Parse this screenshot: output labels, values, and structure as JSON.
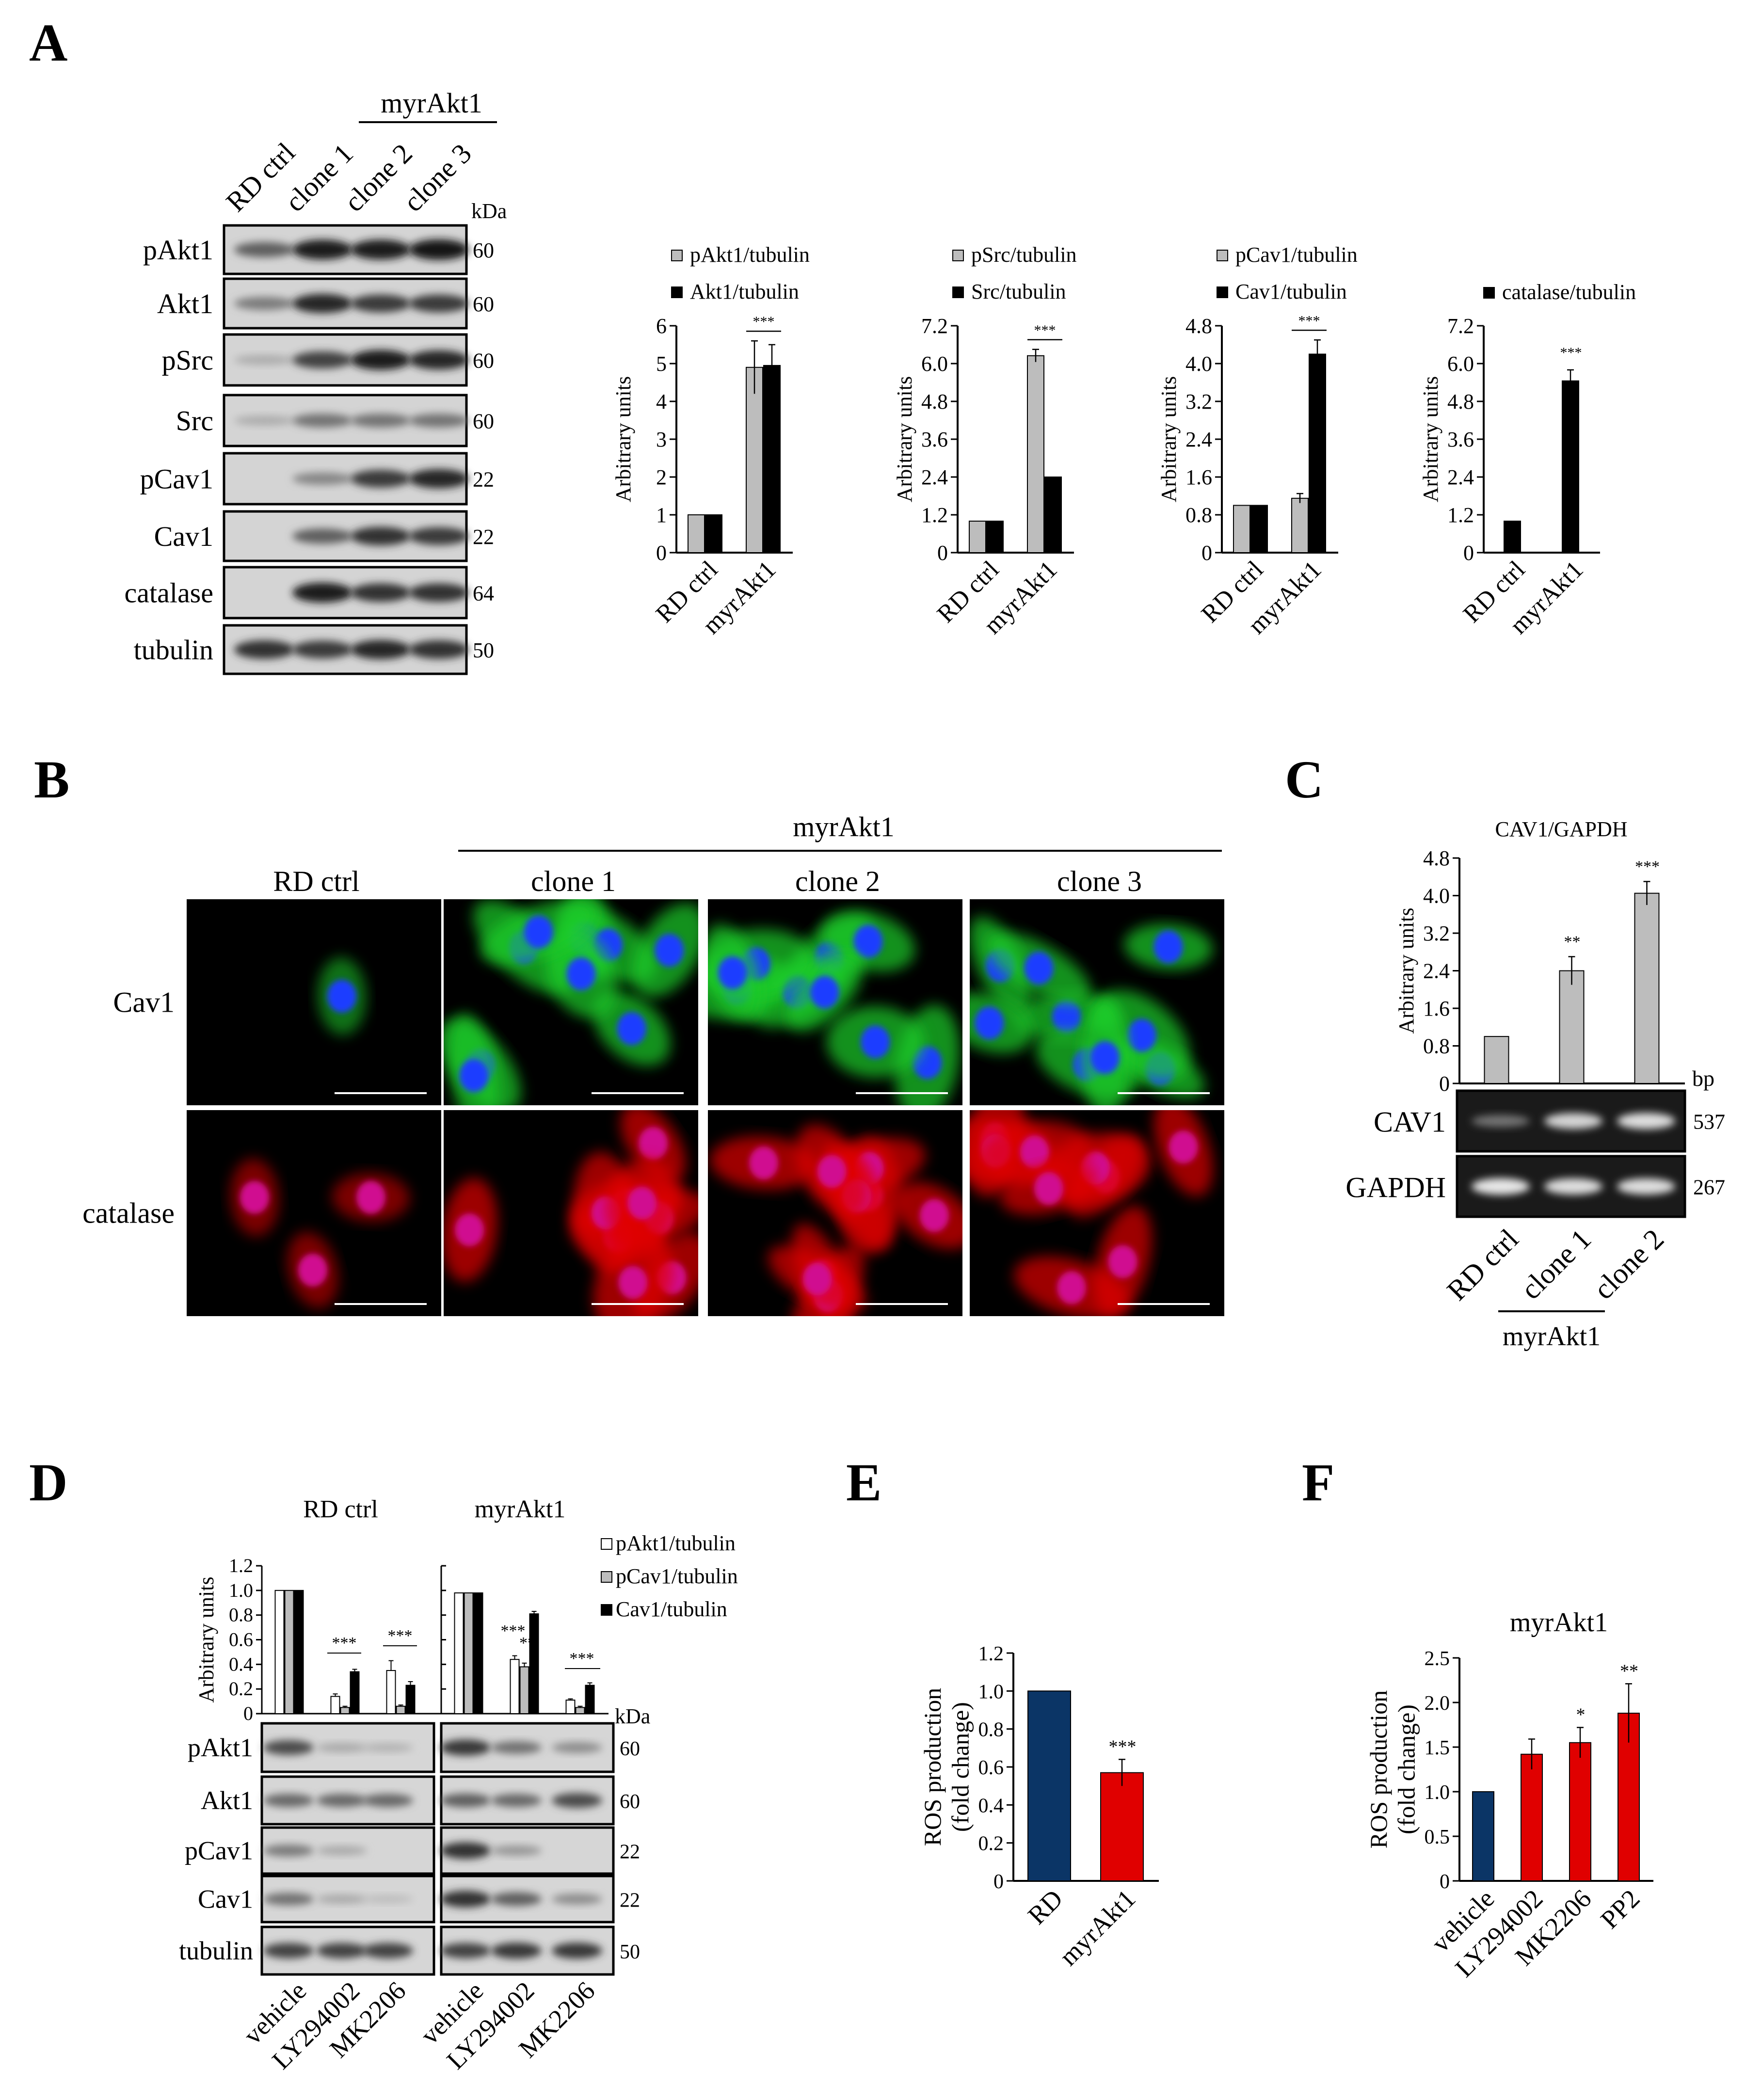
{
  "panels": {
    "A": "A",
    "B": "B",
    "C": "C",
    "D": "D",
    "E": "E",
    "F": "F"
  },
  "panelA": {
    "group_label": "myrAkt1",
    "lanes": [
      "RD ctrl",
      "clone 1",
      "clone 2",
      "clone 3"
    ],
    "kda_label": "kDa",
    "blots": [
      {
        "name": "pAkt1",
        "kda": "60",
        "bands": [
          0.55,
          0.9,
          0.9,
          0.95
        ]
      },
      {
        "name": "Akt1",
        "kda": "60",
        "bands": [
          0.4,
          0.85,
          0.75,
          0.75
        ]
      },
      {
        "name": "pSrc",
        "kda": "60",
        "bands": [
          0.15,
          0.7,
          0.9,
          0.85
        ]
      },
      {
        "name": "Src",
        "kda": "60",
        "bands": [
          0.15,
          0.45,
          0.45,
          0.45
        ]
      },
      {
        "name": "pCav1",
        "kda": "22",
        "bands": [
          0.0,
          0.35,
          0.75,
          0.85
        ]
      },
      {
        "name": "Cav1",
        "kda": "22",
        "bands": [
          0.0,
          0.55,
          0.8,
          0.75
        ]
      },
      {
        "name": "catalase",
        "kda": "64",
        "bands": [
          0.0,
          0.9,
          0.8,
          0.8
        ]
      },
      {
        "name": "tubulin",
        "kda": "50",
        "bands": [
          0.8,
          0.75,
          0.85,
          0.8
        ]
      }
    ]
  },
  "panelB": {
    "group_label": "myrAkt1",
    "columns": [
      "RD ctrl",
      "clone 1",
      "clone 2",
      "clone 3"
    ],
    "rows": [
      "Cav1",
      "catalase"
    ]
  },
  "panelC": {
    "group_label": "myrAkt1",
    "bp_label": "bp",
    "gel_rows": [
      {
        "name": "CAV1",
        "bp": "537",
        "bands": [
          0.3,
          0.8,
          0.85
        ]
      },
      {
        "name": "GAPDH",
        "bp": "267",
        "bands": [
          0.9,
          0.85,
          0.85
        ]
      }
    ]
  },
  "panelD": {
    "group_labels": [
      "RD ctrl",
      "myrAkt1"
    ],
    "kda_label": "kDa",
    "lanes": [
      "vehicle",
      "LY294002",
      "MK2206",
      "vehicle",
      "LY294002",
      "MK2206"
    ],
    "blots": [
      {
        "name": "pAkt1",
        "kda": "60",
        "bands": [
          0.7,
          0.2,
          0.15,
          0.8,
          0.5,
          0.35
        ]
      },
      {
        "name": "Akt1",
        "kda": "60",
        "bands": [
          0.55,
          0.55,
          0.55,
          0.6,
          0.55,
          0.7
        ]
      },
      {
        "name": "pCav1",
        "kda": "22",
        "bands": [
          0.45,
          0.2,
          0.0,
          0.85,
          0.3,
          0.0
        ]
      },
      {
        "name": "Cav1",
        "kda": "22",
        "bands": [
          0.5,
          0.2,
          0.1,
          0.85,
          0.6,
          0.35
        ]
      },
      {
        "name": "tubulin",
        "kda": "50",
        "bands": [
          0.75,
          0.75,
          0.75,
          0.75,
          0.8,
          0.8
        ]
      }
    ]
  },
  "colors": {
    "gray": "#bdbdbd",
    "black": "#000000",
    "white": "#ffffff",
    "navy": "#0b3566",
    "red": "#e00000",
    "green": "#1fcf2a",
    "blue": "#1a3cff",
    "magenta": "#d01090"
  },
  "chart_data": [
    {
      "id": "A1",
      "type": "bar",
      "categories": [
        "RD ctrl",
        "myrAkt1"
      ],
      "ylabel": "Arbitrary units",
      "ylim": [
        0,
        6
      ],
      "yticks": [
        "0",
        "1",
        "2",
        "3",
        "4",
        "5",
        "6"
      ],
      "series": [
        {
          "name": "pAkt1/tubulin",
          "values": [
            1.0,
            4.9
          ],
          "errors": [
            0,
            0.7
          ],
          "color": "#bdbdbd"
        },
        {
          "name": "Akt1/tubulin",
          "values": [
            1.0,
            4.95
          ],
          "errors": [
            0,
            0.55
          ],
          "color": "#000000"
        }
      ],
      "annotations": [
        {
          "text": "***",
          "category": 1
        }
      ]
    },
    {
      "id": "A2",
      "type": "bar",
      "categories": [
        "RD ctrl",
        "myrAkt1"
      ],
      "ylabel": "Arbitrary units",
      "ylim": [
        0,
        7.2
      ],
      "yticks": [
        "0",
        "1.2",
        "2.4",
        "3.6",
        "4.8",
        "6.0",
        "7.2"
      ],
      "series": [
        {
          "name": "pSrc/tubulin",
          "values": [
            1.0,
            6.25
          ],
          "errors": [
            0,
            0.2
          ],
          "color": "#bdbdbd"
        },
        {
          "name": "Src/tubulin",
          "values": [
            1.0,
            2.4
          ],
          "errors": [
            0,
            0
          ],
          "color": "#000000"
        }
      ],
      "annotations": [
        {
          "text": "***",
          "category": 1
        }
      ]
    },
    {
      "id": "A3",
      "type": "bar",
      "categories": [
        "RD ctrl",
        "myrAkt1"
      ],
      "ylabel": "Arbitrary units",
      "ylim": [
        0,
        4.8
      ],
      "yticks": [
        "0",
        "0.8",
        "1.6",
        "2.4",
        "3.2",
        "4.0",
        "4.8"
      ],
      "series": [
        {
          "name": "pCav1/tubulin",
          "values": [
            1.0,
            1.15
          ],
          "errors": [
            0,
            0.1
          ],
          "color": "#bdbdbd"
        },
        {
          "name": "Cav1/tubulin",
          "values": [
            1.0,
            4.2
          ],
          "errors": [
            0,
            0.3
          ],
          "color": "#000000"
        }
      ],
      "annotations": [
        {
          "text": "***",
          "category": 1
        }
      ]
    },
    {
      "id": "A4",
      "type": "bar",
      "categories": [
        "RD ctrl",
        "myrAkt1"
      ],
      "ylabel": "Arbitrary units",
      "ylim": [
        0,
        7.2
      ],
      "yticks": [
        "0",
        "1.2",
        "2.4",
        "3.6",
        "4.8",
        "6.0",
        "7.2"
      ],
      "series": [
        {
          "name": "catalase/tubulin",
          "values": [
            1.0,
            5.45
          ],
          "errors": [
            0,
            0.35
          ],
          "color": "#000000"
        }
      ],
      "annotations": [
        {
          "text": "***",
          "category": 1
        }
      ]
    },
    {
      "id": "C",
      "type": "bar",
      "title": "CAV1/GAPDH",
      "categories": [
        "RD ctrl",
        "clone 1",
        "clone 2"
      ],
      "ylabel": "Arbitrary units",
      "ylim": [
        0,
        4.8
      ],
      "yticks": [
        "0",
        "0.8",
        "1.6",
        "2.4",
        "3.2",
        "4.0",
        "4.8"
      ],
      "series": [
        {
          "values": [
            1.0,
            2.4,
            4.05
          ],
          "errors": [
            0,
            0.3,
            0.25
          ],
          "color": "#bdbdbd"
        }
      ],
      "annotations": [
        {
          "text": "**",
          "category": 1
        },
        {
          "text": "***",
          "category": 2
        }
      ]
    },
    {
      "id": "D",
      "type": "bar",
      "ylabel": "Arbitrary units",
      "ylim": [
        0,
        1.2
      ],
      "yticks": [
        "0",
        "0.2",
        "0.4",
        "0.6",
        "0.8",
        "1.0",
        "1.2"
      ],
      "groups": [
        {
          "title": "RD ctrl",
          "categories": [
            "vehicle",
            "LY294002",
            "MK2206"
          ]
        },
        {
          "title": "myrAkt1",
          "categories": [
            "vehicle",
            "LY294002",
            "MK2206"
          ]
        }
      ],
      "series": [
        {
          "name": "pAkt1/tubulin",
          "color": "#ffffff",
          "values": [
            1.0,
            0.14,
            0.35,
            0.98,
            0.44,
            0.11
          ],
          "errors": [
            0,
            0.02,
            0.08,
            0,
            0.03,
            0.01
          ]
        },
        {
          "name": "pCav1/tubulin",
          "color": "#bdbdbd",
          "values": [
            1.0,
            0.05,
            0.06,
            0.98,
            0.38,
            0.05
          ],
          "errors": [
            0,
            0.01,
            0.01,
            0,
            0.03,
            0.01
          ]
        },
        {
          "name": "Cav1/tubulin",
          "color": "#000000",
          "values": [
            1.0,
            0.34,
            0.23,
            0.98,
            0.81,
            0.23
          ],
          "errors": [
            0,
            0.02,
            0.03,
            0,
            0.02,
            0.02
          ]
        }
      ],
      "annotations": [
        {
          "text": "***",
          "group": 0,
          "category": 1
        },
        {
          "text": "***",
          "group": 0,
          "category": 2
        },
        {
          "text": "***",
          "group": 1,
          "category": 1
        },
        {
          "text": "**",
          "group": 1,
          "category": 1
        },
        {
          "text": "***",
          "group": 1,
          "category": 2
        }
      ]
    },
    {
      "id": "E",
      "type": "bar",
      "categories": [
        "RD",
        "myrAkt1"
      ],
      "ylabel": "ROS production (fold change)",
      "ylim": [
        0,
        1.2
      ],
      "yticks": [
        "0",
        "0.2",
        "0.4",
        "0.6",
        "0.8",
        "1.0",
        "1.2"
      ],
      "series": [
        {
          "values": [
            1.0,
            0.57
          ],
          "errors": [
            0,
            0.07
          ],
          "colors": [
            "#0b3566",
            "#e00000"
          ]
        }
      ],
      "annotations": [
        {
          "text": "***",
          "category": 1
        }
      ]
    },
    {
      "id": "F",
      "type": "bar",
      "title": "myrAkt1",
      "categories": [
        "vehicle",
        "LY294002",
        "MK2206",
        "PP2"
      ],
      "ylabel": "ROS production (fold change)",
      "ylim": [
        0,
        2.5
      ],
      "yticks": [
        "0",
        "0.5",
        "1.0",
        "1.5",
        "2.0",
        "2.5"
      ],
      "series": [
        {
          "values": [
            1.0,
            1.42,
            1.55,
            1.88
          ],
          "errors": [
            0,
            0.17,
            0.17,
            0.33
          ],
          "colors": [
            "#0b3566",
            "#e00000",
            "#e00000",
            "#e00000"
          ]
        }
      ],
      "annotations": [
        {
          "text": "*",
          "category": 2
        },
        {
          "text": "**",
          "category": 3
        }
      ]
    }
  ]
}
